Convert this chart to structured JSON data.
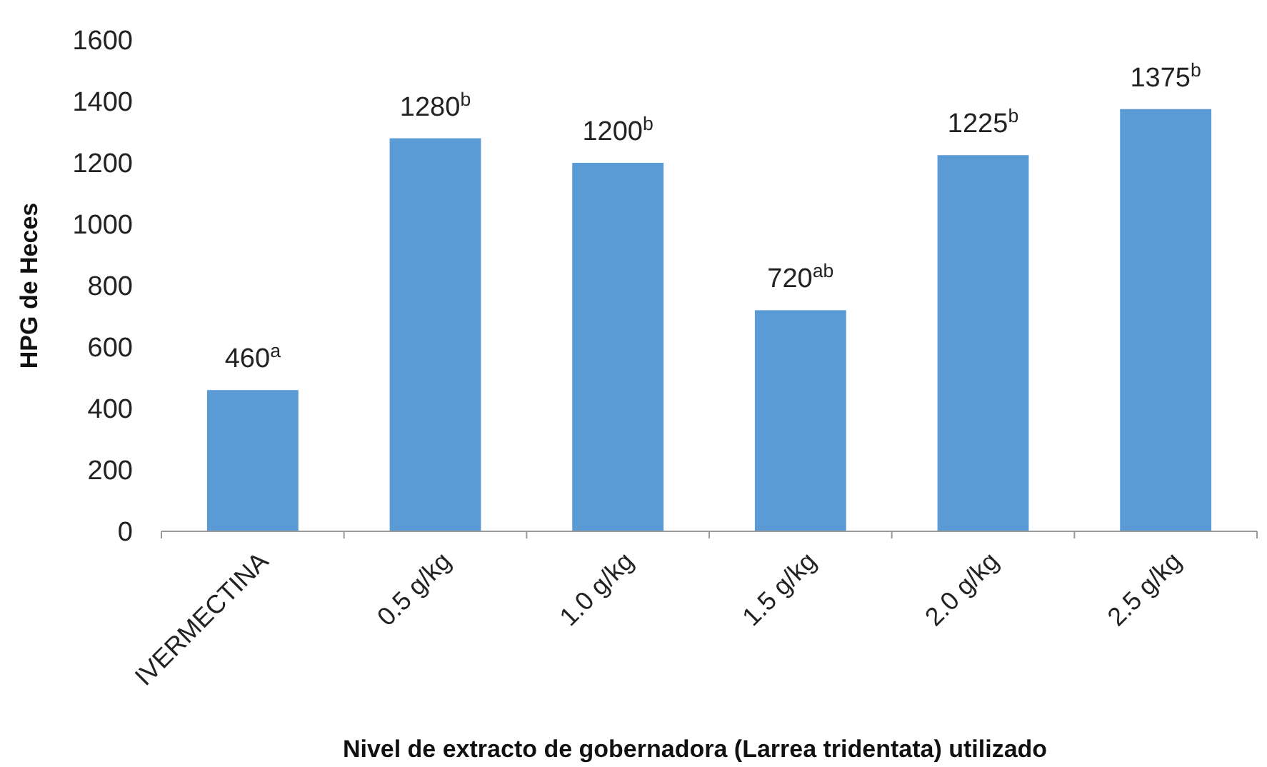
{
  "chart_data": {
    "type": "bar",
    "xlabel": "Nivel de extracto de gobernadora (Larrea tridentata) utilizado",
    "ylabel": "HPG de Heces",
    "categories": [
      "IVERMECTINA",
      "0.5 g/kg",
      "1.0 g/kg",
      "1.5 g/kg",
      "2.0 g/kg",
      "2.5 g/kg"
    ],
    "values": [
      460,
      1280,
      1200,
      720,
      1225,
      1375
    ],
    "value_labels": [
      "460$^{a}$",
      "1280$^{b}$",
      "1200$^{b}$",
      "720$^{ab}$",
      "1225$^{b}$",
      "1375$^{b}$"
    ],
    "color": "#5b9bd5",
    "ylim": [
      0,
      1600
    ],
    "yticks": [
      0,
      200,
      400,
      600,
      800,
      1000,
      1200,
      1400,
      1600
    ],
    "grid": false
  }
}
